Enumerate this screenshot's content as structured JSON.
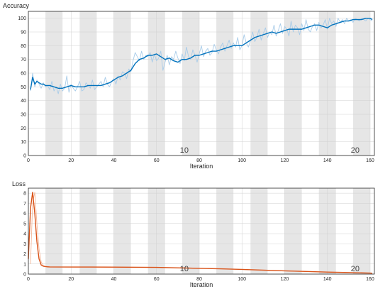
{
  "chart_data": [
    {
      "type": "line",
      "title": "Accuracy",
      "xlabel": "Iteration",
      "ylabel": "",
      "xlim": [
        0,
        162
      ],
      "ylim": [
        0,
        105
      ],
      "xticks": [
        0,
        20,
        40,
        60,
        80,
        100,
        120,
        140,
        160
      ],
      "yticks": [
        0,
        10,
        20,
        30,
        40,
        50,
        60,
        70,
        80,
        90,
        100
      ],
      "epoch_bands": [
        [
          8,
          16
        ],
        [
          24,
          32
        ],
        [
          40,
          48
        ],
        [
          56,
          64
        ],
        [
          72,
          80
        ],
        [
          88,
          96
        ],
        [
          104,
          112
        ],
        [
          120,
          128
        ],
        [
          136,
          144
        ],
        [
          152,
          160
        ]
      ],
      "epoch_labels": [
        {
          "x": 73,
          "label": "10"
        },
        {
          "x": 153,
          "label": "20"
        }
      ],
      "colors": {
        "raw": "#a9cce9",
        "smoothed": "#0072bd",
        "band": "#e6e6e6"
      },
      "series": [
        {
          "role": "raw",
          "x": [
            1,
            2,
            3,
            4,
            5,
            6,
            7,
            8,
            9,
            10,
            11,
            12,
            13,
            14,
            15,
            16,
            17,
            18,
            19,
            20,
            21,
            22,
            23,
            24,
            25,
            26,
            27,
            28,
            29,
            30,
            31,
            32,
            33,
            34,
            35,
            36,
            37,
            38,
            39,
            40,
            41,
            42,
            43,
            44,
            45,
            46,
            47,
            48,
            49,
            50,
            51,
            52,
            53,
            54,
            55,
            56,
            57,
            58,
            59,
            60,
            61,
            62,
            63,
            64,
            65,
            66,
            67,
            68,
            69,
            70,
            71,
            72,
            73,
            74,
            75,
            76,
            77,
            78,
            79,
            80,
            81,
            82,
            83,
            84,
            85,
            86,
            87,
            88,
            89,
            90,
            91,
            92,
            93,
            94,
            95,
            96,
            97,
            98,
            99,
            100,
            101,
            102,
            103,
            104,
            105,
            106,
            107,
            108,
            109,
            110,
            111,
            112,
            113,
            114,
            115,
            116,
            117,
            118,
            119,
            120,
            121,
            122,
            123,
            124,
            125,
            126,
            127,
            128,
            129,
            130,
            131,
            132,
            133,
            134,
            135,
            136,
            137,
            138,
            139,
            140,
            141,
            142,
            143,
            144,
            145,
            146,
            147,
            148,
            149,
            150,
            151,
            152,
            153,
            154,
            155,
            156,
            157,
            158,
            159,
            160,
            161
          ],
          "values": [
            47,
            60,
            50,
            55,
            52,
            49,
            53,
            50,
            51,
            48,
            54,
            47,
            50,
            45,
            52,
            47,
            49,
            58,
            46,
            52,
            49,
            47,
            50,
            54,
            47,
            48,
            53,
            51,
            49,
            55,
            48,
            50,
            52,
            54,
            50,
            57,
            52,
            50,
            54,
            56,
            52,
            58,
            55,
            61,
            60,
            56,
            63,
            61,
            69,
            75,
            72,
            69,
            76,
            70,
            73,
            72,
            75,
            68,
            74,
            69,
            71,
            76,
            62,
            68,
            73,
            66,
            72,
            70,
            76,
            71,
            67,
            74,
            69,
            79,
            72,
            70,
            77,
            73,
            68,
            74,
            80,
            72,
            76,
            78,
            73,
            75,
            81,
            77,
            74,
            79,
            82,
            76,
            80,
            84,
            78,
            82,
            79,
            86,
            77,
            80,
            88,
            82,
            79,
            84,
            90,
            83,
            86,
            92,
            84,
            89,
            93,
            86,
            90,
            88,
            95,
            87,
            91,
            96,
            89,
            94,
            92,
            87,
            98,
            90,
            95,
            93,
            88,
            96,
            91,
            99,
            92,
            90,
            94,
            96,
            91,
            97,
            93,
            95,
            99,
            92,
            100,
            96,
            98,
            94,
            100,
            97,
            99,
            96,
            100,
            98,
            99,
            97,
            100,
            99,
            98,
            100,
            99,
            98,
            100,
            99,
            98
          ]
        },
        {
          "role": "smoothed",
          "x": [
            1,
            2,
            3,
            4,
            5,
            6,
            7,
            8,
            9,
            10,
            12,
            14,
            16,
            18,
            20,
            22,
            24,
            26,
            28,
            30,
            32,
            34,
            36,
            38,
            40,
            42,
            44,
            46,
            48,
            50,
            52,
            54,
            56,
            58,
            60,
            62,
            64,
            66,
            68,
            70,
            72,
            74,
            76,
            78,
            80,
            82,
            84,
            86,
            88,
            90,
            92,
            94,
            96,
            98,
            100,
            102,
            104,
            106,
            108,
            110,
            112,
            114,
            116,
            118,
            120,
            122,
            124,
            126,
            128,
            130,
            132,
            134,
            136,
            138,
            140,
            142,
            144,
            146,
            148,
            150,
            152,
            154,
            156,
            158,
            160,
            161
          ],
          "values": [
            48,
            57,
            52,
            54,
            53,
            52,
            52,
            51,
            51,
            51,
            50,
            49,
            49,
            50,
            51,
            50,
            50,
            50,
            51,
            51,
            51,
            51,
            52,
            53,
            55,
            57,
            58,
            60,
            62,
            67,
            70,
            71,
            73,
            73,
            74,
            72,
            70,
            71,
            69,
            68,
            70,
            70,
            71,
            73,
            73,
            74,
            75,
            76,
            76,
            77,
            78,
            79,
            80,
            80,
            80,
            82,
            84,
            86,
            87,
            88,
            89,
            90,
            89,
            90,
            91,
            92,
            92,
            92,
            92,
            93,
            94,
            95,
            95,
            94,
            93,
            95,
            96,
            97,
            98,
            98,
            99,
            99,
            99,
            100,
            100,
            99
          ]
        }
      ]
    },
    {
      "type": "line",
      "title": "Loss",
      "xlabel": "Iteration",
      "ylabel": "",
      "xlim": [
        0,
        162
      ],
      "ylim": [
        0,
        8.5
      ],
      "xticks": [
        0,
        20,
        40,
        60,
        80,
        100,
        120,
        140,
        160
      ],
      "yticks": [
        0,
        1,
        2,
        3,
        4,
        5,
        6,
        7,
        8
      ],
      "epoch_bands": [
        [
          8,
          16
        ],
        [
          24,
          32
        ],
        [
          40,
          48
        ],
        [
          56,
          64
        ],
        [
          72,
          80
        ],
        [
          88,
          96
        ],
        [
          104,
          112
        ],
        [
          120,
          128
        ],
        [
          136,
          144
        ],
        [
          152,
          160
        ]
      ],
      "epoch_labels": [
        {
          "x": 73,
          "label": "10"
        },
        {
          "x": 153,
          "label": "20"
        }
      ],
      "colors": {
        "raw": "#f4b89a",
        "smoothed": "#d95319",
        "band": "#e6e6e6"
      },
      "series": [
        {
          "role": "raw",
          "x": [
            1,
            2,
            3,
            4,
            5,
            6,
            7,
            8,
            9,
            10,
            20,
            40,
            60,
            80,
            100,
            120,
            140,
            160,
            161
          ],
          "values": [
            1.0,
            7.0,
            8.1,
            5.0,
            2.5,
            1.2,
            0.85,
            0.75,
            0.72,
            0.71,
            0.7,
            0.68,
            0.66,
            0.58,
            0.45,
            0.3,
            0.2,
            0.1,
            0.1
          ]
        },
        {
          "role": "smoothed",
          "x": [
            0,
            1,
            2,
            3,
            4,
            5,
            6,
            7,
            8,
            9,
            10,
            20,
            40,
            60,
            70,
            80,
            90,
            100,
            110,
            120,
            130,
            140,
            150,
            160,
            161
          ],
          "values": [
            1.5,
            6.5,
            8.1,
            6.0,
            3.2,
            1.5,
            0.9,
            0.78,
            0.74,
            0.72,
            0.71,
            0.7,
            0.69,
            0.66,
            0.62,
            0.57,
            0.52,
            0.46,
            0.39,
            0.32,
            0.26,
            0.2,
            0.15,
            0.1,
            0.08
          ]
        }
      ]
    }
  ]
}
